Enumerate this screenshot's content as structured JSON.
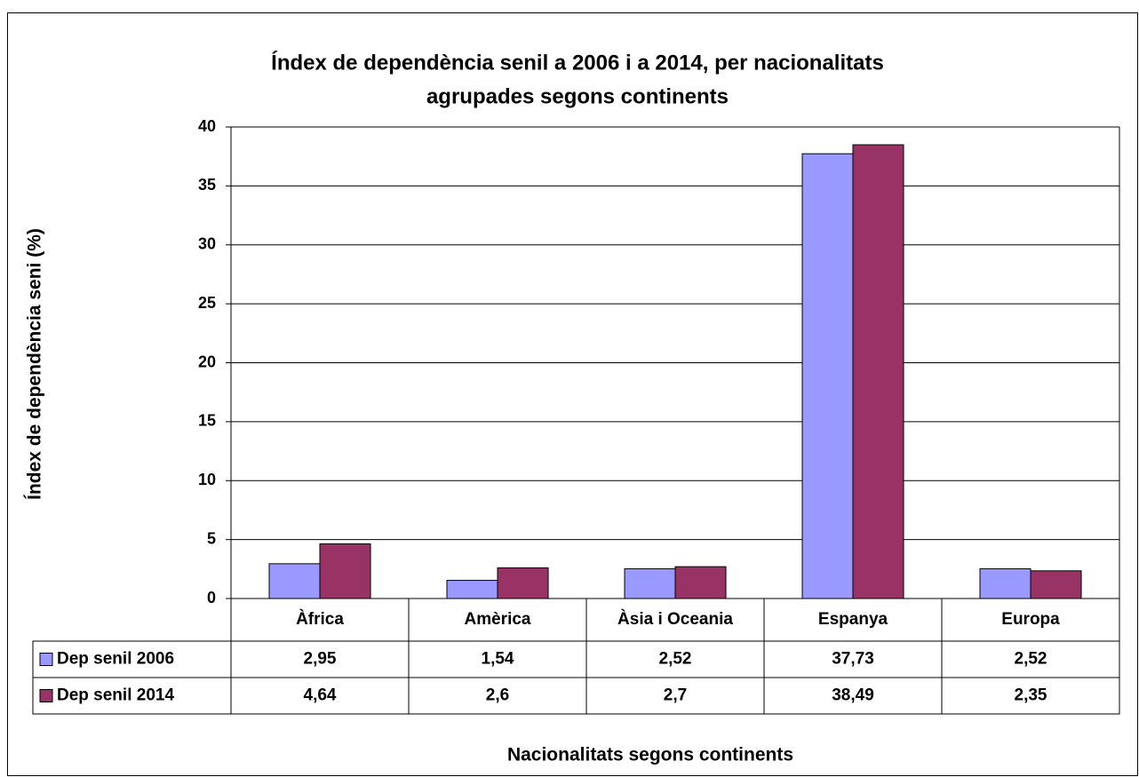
{
  "chart_data": {
    "type": "bar",
    "title": [
      "Índex de dependència senil a 2006 i a 2014, per nacionalitats",
      "agrupades segons continents"
    ],
    "ylabel": "Índex de dependència seni (%)",
    "xlabel": "Nacionalitats segons continents",
    "categories": [
      "Àfrica",
      "Amèrica",
      "Àsia i Oceania",
      "Espanya",
      "Europa"
    ],
    "series": [
      {
        "name": "Dep senil 2006",
        "color": "#9999ff",
        "values": [
          2.95,
          1.54,
          2.52,
          37.73,
          2.52
        ],
        "value_labels": [
          "2,95",
          "1,54",
          "2,52",
          "37,73",
          "2,52"
        ]
      },
      {
        "name": "Dep senil 2014",
        "color": "#993366",
        "values": [
          4.64,
          2.6,
          2.7,
          38.49,
          2.35
        ],
        "value_labels": [
          "4,64",
          "2,6",
          "2,7",
          "38,49",
          "2,35"
        ]
      }
    ],
    "ylim": [
      0,
      40
    ],
    "yticks": [
      0,
      5,
      10,
      15,
      20,
      25,
      30,
      35,
      40
    ],
    "grid": true
  }
}
